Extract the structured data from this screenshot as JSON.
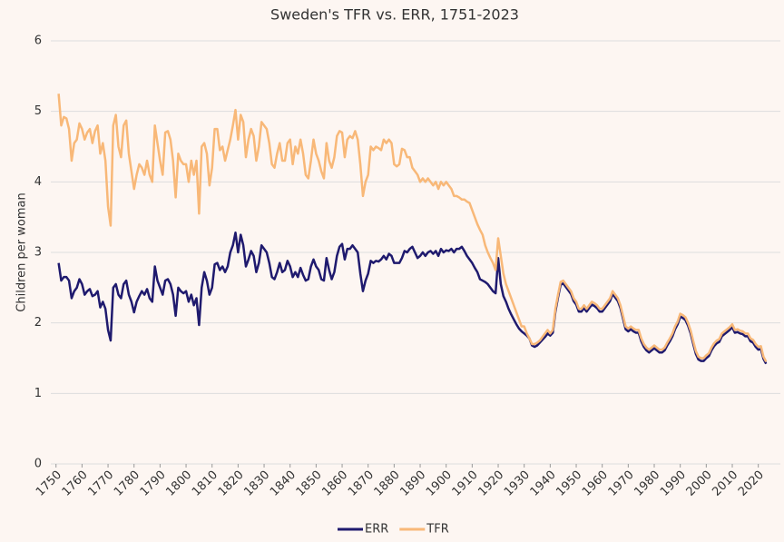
{
  "chart_data": {
    "type": "line",
    "title": "Sweden's TFR vs. ERR, 1751-2023",
    "y_label": "Children per woman",
    "x": [
      1751,
      1752,
      1753,
      1754,
      1755,
      1756,
      1757,
      1758,
      1759,
      1760,
      1761,
      1762,
      1763,
      1764,
      1765,
      1766,
      1767,
      1768,
      1769,
      1770,
      1771,
      1772,
      1773,
      1774,
      1775,
      1776,
      1777,
      1778,
      1779,
      1780,
      1781,
      1782,
      1783,
      1784,
      1785,
      1786,
      1787,
      1788,
      1789,
      1790,
      1791,
      1792,
      1793,
      1794,
      1795,
      1796,
      1797,
      1798,
      1799,
      1800,
      1801,
      1802,
      1803,
      1804,
      1805,
      1806,
      1807,
      1808,
      1809,
      1810,
      1811,
      1812,
      1813,
      1814,
      1815,
      1816,
      1817,
      1818,
      1819,
      1820,
      1821,
      1822,
      1823,
      1824,
      1825,
      1826,
      1827,
      1828,
      1829,
      1830,
      1831,
      1832,
      1833,
      1834,
      1835,
      1836,
      1837,
      1838,
      1839,
      1840,
      1841,
      1842,
      1843,
      1844,
      1845,
      1846,
      1847,
      1848,
      1849,
      1850,
      1851,
      1852,
      1853,
      1854,
      1855,
      1856,
      1857,
      1858,
      1859,
      1860,
      1861,
      1862,
      1863,
      1864,
      1865,
      1866,
      1867,
      1868,
      1869,
      1870,
      1871,
      1872,
      1873,
      1874,
      1875,
      1876,
      1877,
      1878,
      1879,
      1880,
      1881,
      1882,
      1883,
      1884,
      1885,
      1886,
      1887,
      1888,
      1889,
      1890,
      1891,
      1892,
      1893,
      1894,
      1895,
      1896,
      1897,
      1898,
      1899,
      1900,
      1901,
      1902,
      1903,
      1904,
      1905,
      1906,
      1907,
      1908,
      1909,
      1910,
      1911,
      1912,
      1913,
      1914,
      1915,
      1916,
      1917,
      1918,
      1919,
      1920,
      1921,
      1922,
      1923,
      1924,
      1925,
      1926,
      1927,
      1928,
      1929,
      1930,
      1931,
      1932,
      1933,
      1934,
      1935,
      1936,
      1937,
      1938,
      1939,
      1940,
      1941,
      1942,
      1943,
      1944,
      1945,
      1946,
      1947,
      1948,
      1949,
      1950,
      1951,
      1952,
      1953,
      1954,
      1955,
      1956,
      1957,
      1958,
      1959,
      1960,
      1961,
      1962,
      1963,
      1964,
      1965,
      1966,
      1967,
      1968,
      1969,
      1970,
      1971,
      1972,
      1973,
      1974,
      1975,
      1976,
      1977,
      1978,
      1979,
      1980,
      1981,
      1982,
      1983,
      1984,
      1985,
      1986,
      1987,
      1988,
      1989,
      1990,
      1991,
      1992,
      1993,
      1994,
      1995,
      1996,
      1997,
      1998,
      1999,
      2000,
      2001,
      2002,
      2003,
      2004,
      2005,
      2006,
      2007,
      2008,
      2009,
      2010,
      2011,
      2012,
      2013,
      2014,
      2015,
      2016,
      2017,
      2018,
      2019,
      2020,
      2021,
      2022,
      2023
    ],
    "series": [
      {
        "name": "ERR",
        "color": "#1f1a6e",
        "values": [
          2.85,
          2.6,
          2.65,
          2.65,
          2.6,
          2.35,
          2.45,
          2.5,
          2.62,
          2.55,
          2.4,
          2.45,
          2.48,
          2.38,
          2.4,
          2.45,
          2.22,
          2.3,
          2.2,
          1.9,
          1.75,
          2.5,
          2.55,
          2.4,
          2.35,
          2.55,
          2.6,
          2.4,
          2.3,
          2.15,
          2.3,
          2.38,
          2.45,
          2.4,
          2.48,
          2.35,
          2.3,
          2.8,
          2.6,
          2.5,
          2.4,
          2.6,
          2.62,
          2.55,
          2.4,
          2.1,
          2.5,
          2.45,
          2.42,
          2.45,
          2.3,
          2.4,
          2.25,
          2.35,
          1.97,
          2.5,
          2.72,
          2.6,
          2.4,
          2.5,
          2.83,
          2.85,
          2.75,
          2.8,
          2.72,
          2.8,
          3.0,
          3.1,
          3.28,
          3.0,
          3.25,
          3.1,
          2.8,
          2.9,
          3.02,
          2.95,
          2.72,
          2.85,
          3.1,
          3.05,
          3.0,
          2.85,
          2.65,
          2.62,
          2.72,
          2.85,
          2.72,
          2.75,
          2.88,
          2.8,
          2.65,
          2.72,
          2.65,
          2.78,
          2.68,
          2.6,
          2.62,
          2.8,
          2.9,
          2.8,
          2.75,
          2.62,
          2.6,
          2.92,
          2.75,
          2.62,
          2.72,
          2.95,
          3.08,
          3.12,
          2.9,
          3.05,
          3.05,
          3.1,
          3.05,
          3.0,
          2.7,
          2.45,
          2.6,
          2.7,
          2.88,
          2.85,
          2.88,
          2.87,
          2.9,
          2.95,
          2.9,
          2.98,
          2.95,
          2.85,
          2.85,
          2.85,
          2.92,
          3.02,
          3.0,
          3.05,
          3.08,
          3.0,
          2.92,
          2.95,
          3.0,
          2.95,
          3.0,
          3.02,
          2.98,
          3.02,
          2.95,
          3.05,
          3.0,
          3.03,
          3.02,
          3.05,
          3.0,
          3.05,
          3.05,
          3.08,
          3.02,
          2.95,
          2.9,
          2.85,
          2.78,
          2.72,
          2.62,
          2.6,
          2.58,
          2.55,
          2.5,
          2.45,
          2.42,
          2.92,
          2.55,
          2.38,
          2.3,
          2.2,
          2.12,
          2.05,
          1.98,
          1.92,
          1.88,
          1.85,
          1.82,
          1.78,
          1.68,
          1.66,
          1.68,
          1.72,
          1.76,
          1.8,
          1.85,
          1.82,
          1.86,
          2.16,
          2.36,
          2.54,
          2.56,
          2.51,
          2.46,
          2.41,
          2.31,
          2.26,
          2.16,
          2.16,
          2.21,
          2.16,
          2.21,
          2.26,
          2.24,
          2.21,
          2.16,
          2.16,
          2.21,
          2.26,
          2.31,
          2.41,
          2.36,
          2.31,
          2.21,
          2.06,
          1.91,
          1.88,
          1.91,
          1.88,
          1.86,
          1.86,
          1.74,
          1.66,
          1.61,
          1.58,
          1.61,
          1.64,
          1.61,
          1.58,
          1.58,
          1.61,
          1.68,
          1.74,
          1.81,
          1.91,
          1.98,
          2.09,
          2.07,
          2.04,
          1.96,
          1.85,
          1.7,
          1.56,
          1.48,
          1.46,
          1.46,
          1.5,
          1.53,
          1.61,
          1.67,
          1.71,
          1.73,
          1.81,
          1.84,
          1.87,
          1.9,
          1.94,
          1.86,
          1.87,
          1.85,
          1.84,
          1.81,
          1.81,
          1.74,
          1.72,
          1.66,
          1.62,
          1.63,
          1.49,
          1.42
        ]
      },
      {
        "name": "TFR",
        "color": "#f8b878",
        "values": [
          5.25,
          4.8,
          4.92,
          4.9,
          4.75,
          4.3,
          4.55,
          4.6,
          4.83,
          4.75,
          4.6,
          4.7,
          4.75,
          4.55,
          4.72,
          4.8,
          4.4,
          4.55,
          4.3,
          3.65,
          3.38,
          4.8,
          4.95,
          4.5,
          4.35,
          4.8,
          4.87,
          4.4,
          4.15,
          3.9,
          4.1,
          4.25,
          4.2,
          4.1,
          4.3,
          4.1,
          4.0,
          4.8,
          4.55,
          4.3,
          4.1,
          4.7,
          4.72,
          4.6,
          4.3,
          3.78,
          4.4,
          4.3,
          4.25,
          4.25,
          4.0,
          4.3,
          4.1,
          4.3,
          3.55,
          4.5,
          4.55,
          4.4,
          3.95,
          4.2,
          4.75,
          4.75,
          4.45,
          4.5,
          4.3,
          4.45,
          4.6,
          4.8,
          5.02,
          4.6,
          4.95,
          4.85,
          4.35,
          4.6,
          4.75,
          4.65,
          4.3,
          4.5,
          4.85,
          4.8,
          4.75,
          4.55,
          4.25,
          4.2,
          4.4,
          4.55,
          4.3,
          4.3,
          4.55,
          4.6,
          4.25,
          4.5,
          4.4,
          4.6,
          4.4,
          4.1,
          4.05,
          4.3,
          4.6,
          4.4,
          4.3,
          4.15,
          4.05,
          4.55,
          4.3,
          4.2,
          4.35,
          4.65,
          4.72,
          4.7,
          4.35,
          4.6,
          4.65,
          4.62,
          4.72,
          4.6,
          4.25,
          3.8,
          4.0,
          4.1,
          4.5,
          4.45,
          4.5,
          4.48,
          4.45,
          4.6,
          4.55,
          4.6,
          4.55,
          4.25,
          4.22,
          4.25,
          4.47,
          4.45,
          4.35,
          4.35,
          4.2,
          4.15,
          4.1,
          4.0,
          4.05,
          4.0,
          4.05,
          4.0,
          3.95,
          4.0,
          3.9,
          4.0,
          3.95,
          4.0,
          3.95,
          3.9,
          3.8,
          3.8,
          3.78,
          3.75,
          3.75,
          3.72,
          3.7,
          3.6,
          3.5,
          3.4,
          3.32,
          3.25,
          3.1,
          3.0,
          2.92,
          2.85,
          2.75,
          3.2,
          2.95,
          2.7,
          2.55,
          2.45,
          2.35,
          2.25,
          2.15,
          2.05,
          1.95,
          1.95,
          1.85,
          1.78,
          1.7,
          1.7,
          1.72,
          1.75,
          1.8,
          1.85,
          1.9,
          1.85,
          1.9,
          2.2,
          2.4,
          2.58,
          2.6,
          2.55,
          2.5,
          2.45,
          2.35,
          2.3,
          2.2,
          2.2,
          2.25,
          2.2,
          2.25,
          2.3,
          2.28,
          2.25,
          2.2,
          2.2,
          2.25,
          2.3,
          2.35,
          2.45,
          2.4,
          2.35,
          2.25,
          2.1,
          1.95,
          1.92,
          1.95,
          1.92,
          1.9,
          1.9,
          1.78,
          1.7,
          1.65,
          1.62,
          1.65,
          1.68,
          1.65,
          1.62,
          1.62,
          1.65,
          1.72,
          1.78,
          1.85,
          1.95,
          2.02,
          2.13,
          2.11,
          2.08,
          2.0,
          1.89,
          1.74,
          1.6,
          1.52,
          1.5,
          1.5,
          1.54,
          1.57,
          1.65,
          1.71,
          1.75,
          1.77,
          1.85,
          1.88,
          1.91,
          1.94,
          1.98,
          1.9,
          1.91,
          1.89,
          1.88,
          1.85,
          1.85,
          1.78,
          1.76,
          1.7,
          1.66,
          1.67,
          1.52,
          1.45
        ]
      }
    ],
    "xlim": [
      1748,
      2025
    ],
    "xticks": [
      1750,
      1760,
      1770,
      1780,
      1790,
      1800,
      1810,
      1820,
      1830,
      1840,
      1850,
      1860,
      1870,
      1880,
      1890,
      1900,
      1910,
      1920,
      1930,
      1940,
      1950,
      1960,
      1970,
      1980,
      1990,
      2000,
      2010,
      2020
    ],
    "ylim": [
      0,
      6
    ],
    "yticks": [
      0,
      1,
      2,
      3,
      4,
      5,
      6
    ],
    "grid": true,
    "legend": "bottom"
  }
}
